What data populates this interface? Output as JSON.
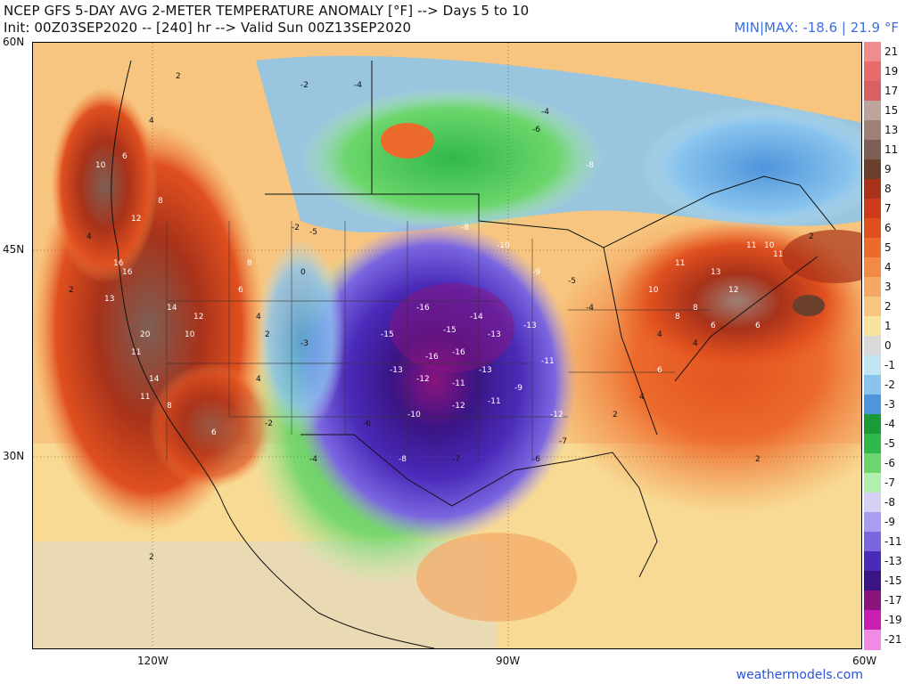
{
  "header": {
    "title_line1": "NCEP GFS 5-DAY AVG 2-METER TEMPERATURE ANOMALY [°F] --> Days 5 to 10",
    "title_line2": "Init: 00Z03SEP2020 -- [240] hr --> Valid Sun 00Z13SEP2020",
    "minmax": "MIN|MAX: -18.6 | 21.9 °F"
  },
  "axes": {
    "lat_labels": [
      "60N",
      "45N",
      "30N"
    ],
    "lon_labels": [
      "120W",
      "90W",
      "60W"
    ]
  },
  "credit": "weathermodels.com",
  "colorbar": {
    "levels": [
      {
        "label": "21",
        "color": "#f08c8c"
      },
      {
        "label": "19",
        "color": "#e86b6b"
      },
      {
        "label": "17",
        "color": "#d96060"
      },
      {
        "label": "15",
        "color": "#bba49b"
      },
      {
        "label": "13",
        "color": "#9e8176"
      },
      {
        "label": "11",
        "color": "#7e5f55"
      },
      {
        "label": "9",
        "color": "#6a3f2c"
      },
      {
        "label": "8",
        "color": "#a8321a"
      },
      {
        "label": "7",
        "color": "#cc3c1a"
      },
      {
        "label": "6",
        "color": "#e0501f"
      },
      {
        "label": "5",
        "color": "#ec6a2c"
      },
      {
        "label": "4",
        "color": "#f28a45"
      },
      {
        "label": "3",
        "color": "#f5a866"
      },
      {
        "label": "2",
        "color": "#f7c57f"
      },
      {
        "label": "1",
        "color": "#f8e29c"
      },
      {
        "label": "0",
        "color": "#d9d9d9"
      },
      {
        "label": "-1",
        "color": "#bfe4f2"
      },
      {
        "label": "-2",
        "color": "#89c4ee"
      },
      {
        "label": "-3",
        "color": "#4f95dc"
      },
      {
        "label": "-4",
        "color": "#1b9a3a"
      },
      {
        "label": "-5",
        "color": "#31b84a"
      },
      {
        "label": "-6",
        "color": "#6cd66c"
      },
      {
        "label": "-7",
        "color": "#b2eeae"
      },
      {
        "label": "-8",
        "color": "#d6d0f5"
      },
      {
        "label": "-9",
        "color": "#aa9cf0"
      },
      {
        "label": "-11",
        "color": "#7b66e0"
      },
      {
        "label": "-13",
        "color": "#4a2ab9"
      },
      {
        "label": "-15",
        "color": "#3a1585"
      },
      {
        "label": "-17",
        "color": "#8a137e"
      },
      {
        "label": "-19",
        "color": "#c81fb3"
      },
      {
        "label": "-21",
        "color": "#f08ae4"
      }
    ]
  },
  "anomaly_labels": [
    {
      "v": "-16"
    },
    {
      "v": "-15"
    },
    {
      "v": "-14"
    },
    {
      "v": "-13"
    },
    {
      "v": "-12"
    },
    {
      "v": "-11"
    },
    {
      "v": "-10"
    },
    {
      "v": "-9"
    },
    {
      "v": "-8"
    },
    {
      "v": "-7"
    },
    {
      "v": "-6"
    },
    {
      "v": "-5"
    },
    {
      "v": "-4"
    },
    {
      "v": "-3"
    },
    {
      "v": "-2"
    },
    {
      "v": "0"
    },
    {
      "v": "2"
    },
    {
      "v": "4"
    },
    {
      "v": "6"
    },
    {
      "v": "8"
    },
    {
      "v": "10"
    },
    {
      "v": "11"
    },
    {
      "v": "12"
    },
    {
      "v": "13"
    },
    {
      "v": "14"
    },
    {
      "v": "16"
    },
    {
      "v": "20"
    }
  ],
  "colors": {
    "min_max_text": "#3b6fe0",
    "credit_text": "#2952d9"
  }
}
